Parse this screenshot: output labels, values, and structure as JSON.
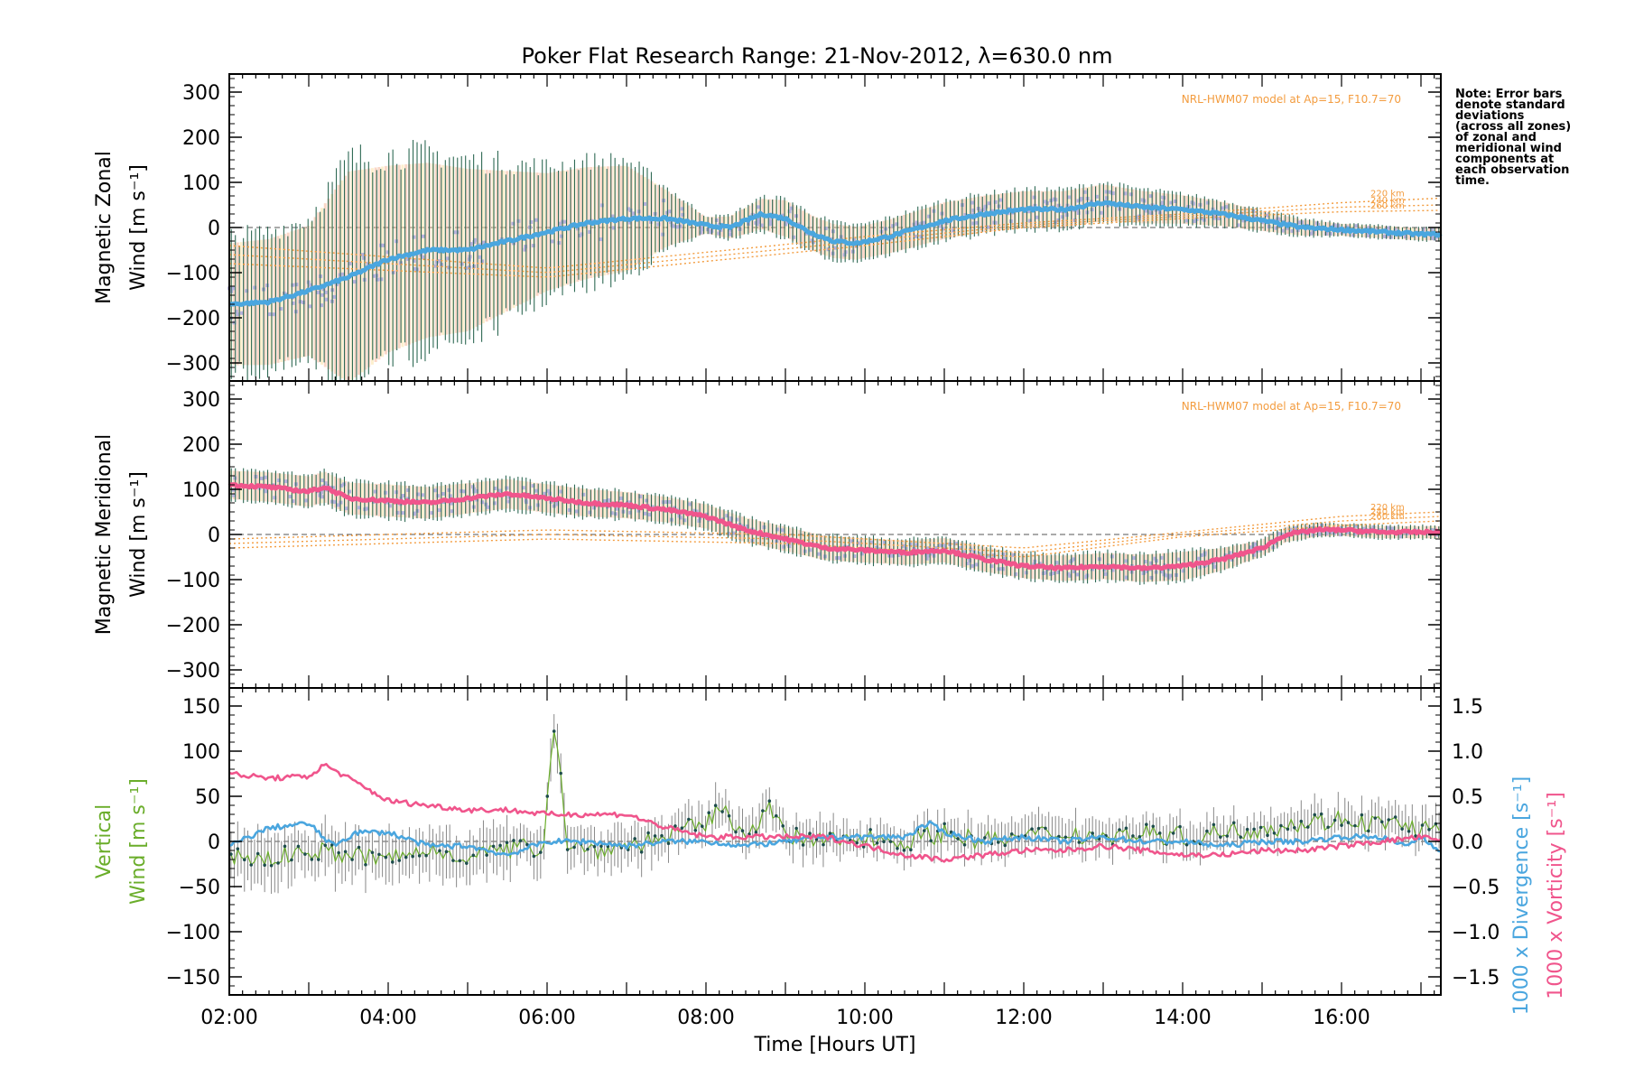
{
  "title": "Poker Flat Research Range: 21-Nov-2012, λ=630.0 nm",
  "note": [
    "Note: Error bars",
    "denote standard",
    "deviations",
    "(across all zones)",
    "of zonal and",
    "meridional wind",
    "components at",
    "each observation",
    "time."
  ],
  "colors": {
    "zonal_mean": "#4aa6df",
    "meridional_mean": "#f0558c",
    "vertical": "#6aad2a",
    "divergence": "#4aa6df",
    "vorticity": "#f0558c",
    "errorbar": "#2f6a55",
    "model": "#f39c3f",
    "scatter": "#b7b2dc",
    "zone_peach": "#f6b89a",
    "zone_yellow": "#fde3a7"
  },
  "chart_data": [
    {
      "type": "line",
      "panel": "zonal",
      "ylabel": [
        "Magnetic Zonal",
        "Wind [m s⁻¹]"
      ],
      "yticks": [
        300,
        200,
        100,
        0,
        -100,
        -200,
        -300
      ],
      "ylim": [
        -340,
        340
      ],
      "xlim": [
        2.0,
        17.25
      ],
      "model_label": "NRL-HWM07 model at Ap=15, F10.7=70",
      "model_altitudes": [
        "220 km",
        "240 km",
        "260 km"
      ],
      "series": [
        {
          "x": [
            2.0,
            2.5,
            3.0,
            3.5,
            4.0,
            4.5,
            5.0,
            5.5,
            6.0,
            6.5,
            7.0,
            7.5,
            8.0,
            8.3,
            8.7,
            9.0,
            9.3,
            9.6,
            9.9,
            10.3,
            10.7,
            11.0,
            11.5,
            12.0,
            12.5,
            13.0,
            13.5,
            14.0,
            14.5,
            15.0,
            15.5,
            16.0,
            16.5,
            17.0,
            17.25
          ],
          "y": [
            -170,
            -165,
            -140,
            -110,
            -70,
            -50,
            -50,
            -30,
            -10,
            10,
            20,
            20,
            5,
            0,
            30,
            20,
            -10,
            -30,
            -35,
            -20,
            0,
            15,
            30,
            40,
            40,
            55,
            45,
            40,
            30,
            15,
            0,
            -5,
            -10,
            -15,
            -15
          ]
        }
      ],
      "errorbar_sd": [
        {
          "x": 2.0,
          "sd": 150
        },
        {
          "x": 3.0,
          "sd": 160
        },
        {
          "x": 3.5,
          "sd": 260
        },
        {
          "x": 4.0,
          "sd": 230
        },
        {
          "x": 5.0,
          "sd": 200
        },
        {
          "x": 6.0,
          "sd": 145
        },
        {
          "x": 7.0,
          "sd": 130
        },
        {
          "x": 7.5,
          "sd": 70
        },
        {
          "x": 8.0,
          "sd": 20
        },
        {
          "x": 9.0,
          "sd": 45
        },
        {
          "x": 10.0,
          "sd": 40
        },
        {
          "x": 11.0,
          "sd": 45
        },
        {
          "x": 12.0,
          "sd": 45
        },
        {
          "x": 13.0,
          "sd": 45
        },
        {
          "x": 14.0,
          "sd": 35
        },
        {
          "x": 15.0,
          "sd": 25
        },
        {
          "x": 16.0,
          "sd": 15
        },
        {
          "x": 17.25,
          "sd": 15
        }
      ],
      "model": [
        {
          "name": "220 km",
          "x": [
            2.0,
            6.0,
            10.0,
            12.0,
            14.0,
            16.0,
            17.25
          ],
          "y": [
            -40,
            -90,
            -20,
            10,
            30,
            55,
            65
          ]
        },
        {
          "name": "240 km",
          "x": [
            2.0,
            6.0,
            10.0,
            12.0,
            14.0,
            16.0,
            17.25
          ],
          "y": [
            -60,
            -100,
            -30,
            5,
            25,
            45,
            50
          ]
        },
        {
          "name": "260 km",
          "x": [
            2.0,
            6.0,
            10.0,
            12.0,
            14.0,
            16.0,
            17.25
          ],
          "y": [
            -80,
            -110,
            -40,
            0,
            20,
            35,
            38
          ]
        }
      ]
    },
    {
      "type": "line",
      "panel": "meridional",
      "ylabel": [
        "Magnetic Meridional",
        "Wind [m s⁻¹]"
      ],
      "yticks": [
        300,
        200,
        100,
        0,
        -100,
        -200,
        -300
      ],
      "ylim": [
        -340,
        340
      ],
      "xlim": [
        2.0,
        17.25
      ],
      "model_label": "NRL-HWM07 model at Ap=15, F10.7=70",
      "model_altitudes": [
        "220 km",
        "240 km",
        "260 km"
      ],
      "series": [
        {
          "x": [
            2.0,
            2.5,
            3.0,
            3.2,
            3.5,
            4.0,
            4.5,
            5.0,
            5.5,
            6.0,
            6.5,
            7.0,
            7.5,
            8.0,
            8.5,
            9.0,
            9.5,
            10.0,
            10.5,
            11.0,
            11.5,
            12.0,
            12.5,
            13.0,
            13.5,
            14.0,
            14.5,
            15.0,
            15.3,
            15.7,
            16.0,
            16.5,
            17.0,
            17.25
          ],
          "y": [
            110,
            105,
            95,
            105,
            80,
            75,
            70,
            80,
            90,
            80,
            70,
            65,
            55,
            40,
            10,
            -10,
            -30,
            -35,
            -40,
            -35,
            -55,
            -70,
            -75,
            -70,
            -75,
            -70,
            -55,
            -30,
            0,
            10,
            10,
            5,
            5,
            5
          ]
        }
      ],
      "errorbar_sd": [
        {
          "x": 2.0,
          "sd": 35
        },
        {
          "x": 4.0,
          "sd": 40
        },
        {
          "x": 6.0,
          "sd": 35
        },
        {
          "x": 8.0,
          "sd": 30
        },
        {
          "x": 10.0,
          "sd": 30
        },
        {
          "x": 12.0,
          "sd": 30
        },
        {
          "x": 14.0,
          "sd": 35
        },
        {
          "x": 15.0,
          "sd": 20
        },
        {
          "x": 16.0,
          "sd": 15
        },
        {
          "x": 17.25,
          "sd": 15
        }
      ],
      "model": [
        {
          "name": "220 km",
          "x": [
            2.0,
            6.0,
            9.0,
            12.0,
            14.0,
            16.0,
            17.25
          ],
          "y": [
            -10,
            10,
            0,
            -30,
            5,
            40,
            50
          ]
        },
        {
          "name": "240 km",
          "x": [
            2.0,
            6.0,
            9.0,
            12.0,
            14.0,
            16.0,
            17.25
          ],
          "y": [
            -20,
            0,
            -10,
            -40,
            0,
            30,
            40
          ]
        },
        {
          "name": "260 km",
          "x": [
            2.0,
            6.0,
            9.0,
            12.0,
            14.0,
            16.0,
            17.25
          ],
          "y": [
            -30,
            -10,
            -20,
            -50,
            -5,
            20,
            30
          ]
        }
      ]
    },
    {
      "type": "line",
      "panel": "vertical",
      "ylabel_left": [
        "Vertical",
        "Wind [m s⁻¹]"
      ],
      "ylabel_right": [
        "1000 x Divergence [s⁻¹]",
        "1000 x Vorticity [s⁻¹]"
      ],
      "xlabel": "Time [Hours UT]",
      "xticks": [
        "02:00",
        "04:00",
        "06:00",
        "08:00",
        "10:00",
        "12:00",
        "14:00",
        "16:00"
      ],
      "yticks_left": [
        150,
        100,
        50,
        0,
        -50,
        -100,
        -150
      ],
      "yticks_right": [
        "1.5",
        "1.0",
        "0.5",
        "0.0",
        "-0.5",
        "-1.0",
        "-1.5"
      ],
      "ylim_left": [
        -170,
        170
      ],
      "ylim_right": [
        -1.7,
        1.7
      ],
      "xlim": [
        2.0,
        17.25
      ],
      "series": [
        {
          "name": "Vertical wind",
          "axis": "left",
          "x": [
            2.0,
            2.5,
            3.0,
            3.5,
            4.0,
            4.5,
            5.0,
            5.5,
            5.95,
            6.1,
            6.25,
            6.5,
            7.0,
            7.5,
            8.0,
            8.2,
            8.5,
            8.8,
            9.0,
            9.5,
            10.0,
            10.5,
            11.0,
            11.5,
            12.0,
            12.5,
            13.0,
            13.5,
            14.0,
            14.5,
            15.0,
            15.5,
            16.0,
            16.5,
            17.0,
            17.25
          ],
          "y": [
            -15,
            -20,
            -10,
            -15,
            -20,
            -10,
            -15,
            -10,
            -5,
            140,
            0,
            -10,
            -5,
            5,
            20,
            35,
            10,
            35,
            5,
            0,
            5,
            0,
            10,
            0,
            5,
            10,
            5,
            10,
            5,
            10,
            15,
            20,
            25,
            20,
            15,
            10
          ]
        },
        {
          "name": "1000 x Divergence",
          "axis": "right",
          "x": [
            2.0,
            2.5,
            3.0,
            3.3,
            3.6,
            4.0,
            4.5,
            5.0,
            5.5,
            6.0,
            6.5,
            7.0,
            7.5,
            8.0,
            8.5,
            9.0,
            9.5,
            10.0,
            10.5,
            10.8,
            11.0,
            11.5,
            12.0,
            12.5,
            13.0,
            13.5,
            14.0,
            14.5,
            15.0,
            15.5,
            16.0,
            16.5,
            16.8,
            17.0,
            17.25
          ],
          "y": [
            -0.05,
            0.15,
            0.2,
            -0.05,
            0.1,
            0.1,
            -0.05,
            -0.05,
            -0.15,
            0.0,
            0.0,
            -0.05,
            0.0,
            0.0,
            -0.05,
            0.0,
            0.05,
            0.05,
            0.05,
            0.2,
            0.1,
            0.0,
            0.05,
            0.0,
            0.05,
            0.0,
            0.0,
            -0.05,
            0.0,
            0.0,
            0.05,
            0.05,
            -0.05,
            0.05,
            -0.1
          ]
        },
        {
          "name": "1000 x Vorticity",
          "axis": "right",
          "x": [
            2.0,
            2.5,
            3.0,
            3.2,
            3.5,
            4.0,
            4.5,
            5.0,
            5.5,
            6.0,
            6.5,
            7.0,
            7.5,
            8.0,
            8.5,
            9.0,
            9.5,
            10.0,
            10.5,
            11.0,
            11.5,
            12.0,
            12.5,
            13.0,
            13.5,
            14.0,
            14.5,
            15.0,
            15.5,
            16.0,
            16.5,
            17.0,
            17.25
          ],
          "y": [
            0.75,
            0.7,
            0.72,
            0.85,
            0.7,
            0.45,
            0.4,
            0.35,
            0.35,
            0.3,
            0.3,
            0.3,
            0.15,
            0.05,
            0.05,
            0.05,
            0.05,
            -0.05,
            -0.15,
            -0.2,
            -0.15,
            -0.1,
            -0.1,
            -0.05,
            -0.1,
            -0.15,
            -0.15,
            -0.1,
            -0.1,
            -0.05,
            0.0,
            0.05,
            0.0
          ]
        }
      ],
      "errorbar_sd": [
        {
          "x": 2.0,
          "sd": 30
        },
        {
          "x": 6.0,
          "sd": 25
        },
        {
          "x": 10.0,
          "sd": 20
        },
        {
          "x": 14.0,
          "sd": 20
        },
        {
          "x": 17.25,
          "sd": 20
        }
      ]
    }
  ]
}
